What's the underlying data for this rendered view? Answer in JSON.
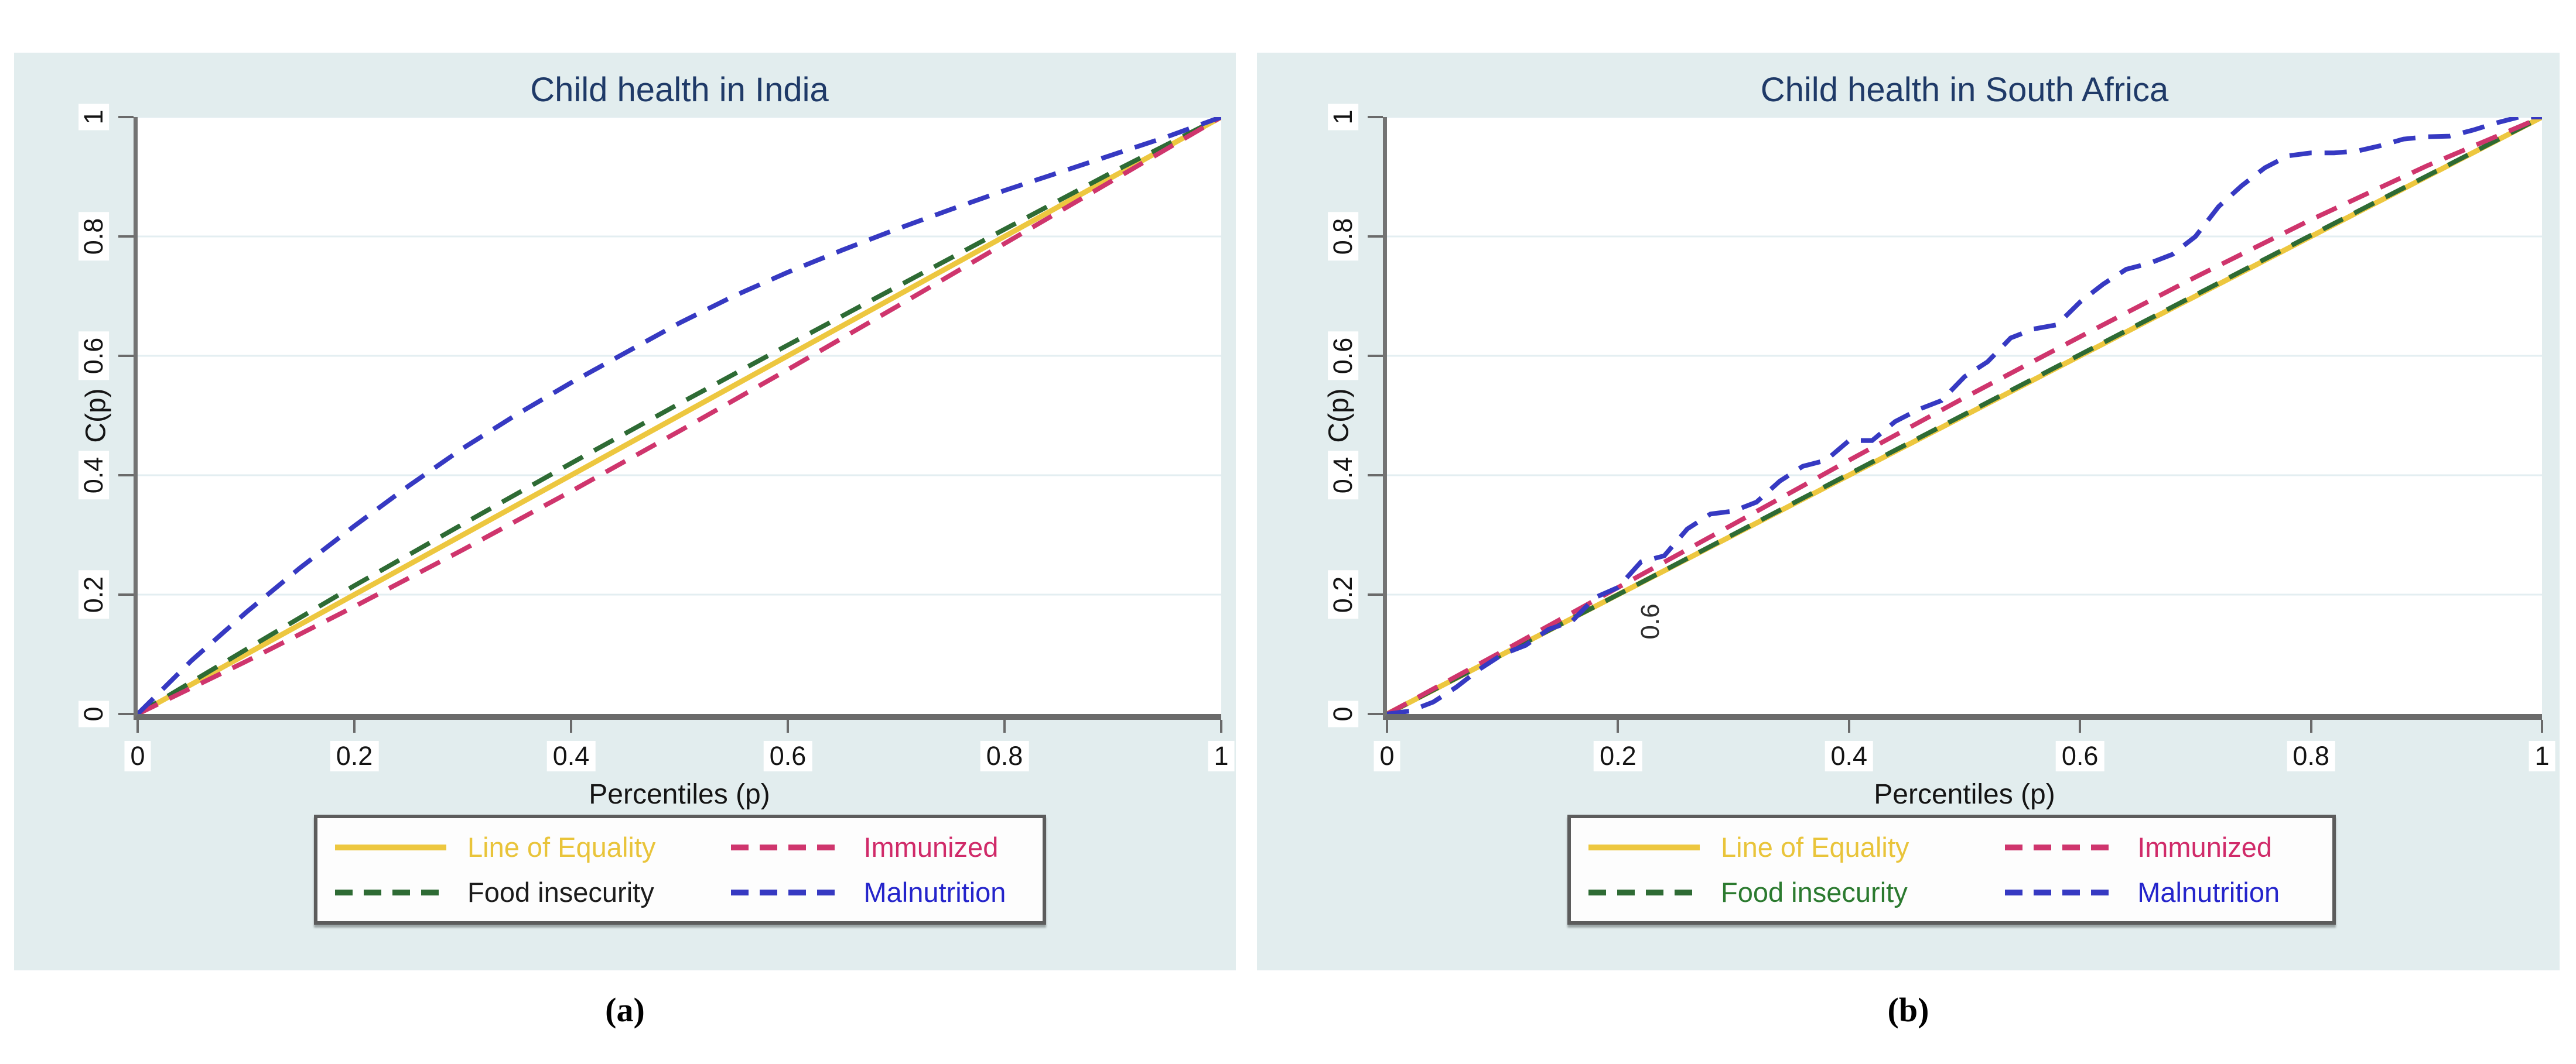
{
  "style": {
    "panel_bg": "#e2edee",
    "plot_bg": "#ffffff",
    "grid_color": "#e3eef1",
    "axis_color": "#6b6b6b",
    "title_color": "#1f3a68",
    "tick_text_color": "#141414"
  },
  "captions": {
    "a": "(a)",
    "b": "(b)"
  },
  "chart_data": [
    {
      "type": "line",
      "title": "Child health in India",
      "xlabel": "Percentiles (p)",
      "ylabel": "C(p)",
      "xlim": [
        0,
        1
      ],
      "ylim": [
        0,
        1
      ],
      "grid": "horizontal",
      "legend_position": "below",
      "xtick_values": [
        0,
        0.2,
        0.4,
        0.6,
        0.8,
        1
      ],
      "xtick_labels": [
        "0",
        "0.2",
        "0.4",
        "0.6",
        "0.8",
        "1"
      ],
      "ytick_values": [
        0,
        0.2,
        0.4,
        0.6,
        0.8,
        1
      ],
      "ytick_labels": [
        "0",
        "0.2",
        "0.4",
        "0.6",
        "0.8",
        "1"
      ],
      "series": [
        {
          "name": "Line of Equality",
          "color": "#edc73f",
          "dash": "solid",
          "points": [
            [
              0,
              0
            ],
            [
              1,
              1
            ]
          ]
        },
        {
          "name": "Food insecurity",
          "color": "#2e6b34",
          "dash": "dashed",
          "points": [
            [
              0,
              0
            ],
            [
              0.1,
              0.108
            ],
            [
              0.2,
              0.215
            ],
            [
              0.3,
              0.318
            ],
            [
              0.4,
              0.42
            ],
            [
              0.5,
              0.52
            ],
            [
              0.6,
              0.618
            ],
            [
              0.7,
              0.715
            ],
            [
              0.8,
              0.812
            ],
            [
              0.9,
              0.908
            ],
            [
              1,
              1
            ]
          ]
        },
        {
          "name": "Immunized",
          "color": "#cf356d",
          "dash": "dashed",
          "points": [
            [
              0,
              0
            ],
            [
              0.1,
              0.088
            ],
            [
              0.2,
              0.18
            ],
            [
              0.3,
              0.275
            ],
            [
              0.4,
              0.373
            ],
            [
              0.5,
              0.474
            ],
            [
              0.6,
              0.577
            ],
            [
              0.7,
              0.682
            ],
            [
              0.8,
              0.788
            ],
            [
              0.9,
              0.894
            ],
            [
              1,
              1
            ]
          ]
        },
        {
          "name": "Malnutrition",
          "color": "#3639c2",
          "dash": "dashed",
          "points": [
            [
              0,
              0
            ],
            [
              0.05,
              0.09
            ],
            [
              0.1,
              0.17
            ],
            [
              0.15,
              0.245
            ],
            [
              0.2,
              0.315
            ],
            [
              0.25,
              0.382
            ],
            [
              0.3,
              0.445
            ],
            [
              0.35,
              0.502
            ],
            [
              0.4,
              0.555
            ],
            [
              0.45,
              0.605
            ],
            [
              0.5,
              0.655
            ],
            [
              0.55,
              0.7
            ],
            [
              0.6,
              0.74
            ],
            [
              0.65,
              0.777
            ],
            [
              0.7,
              0.812
            ],
            [
              0.75,
              0.845
            ],
            [
              0.8,
              0.877
            ],
            [
              0.85,
              0.907
            ],
            [
              0.9,
              0.937
            ],
            [
              0.95,
              0.967
            ],
            [
              1,
              1
            ]
          ]
        }
      ],
      "legend": [
        {
          "label": "Line of Equality",
          "color": "#edc73f",
          "text_color": "#e9c43a",
          "dash": "solid"
        },
        {
          "label": "Immunized",
          "color": "#cf356d",
          "text_color": "#d02a69",
          "dash": "dashed"
        },
        {
          "label": "Food insecurity",
          "color": "#2e6b34",
          "text_color": "#1c1c1c",
          "dash": "dashed"
        },
        {
          "label": "Malnutrition",
          "color": "#3639c2",
          "text_color": "#2424cb",
          "dash": "dashed"
        }
      ],
      "annotations": []
    },
    {
      "type": "line",
      "title": "Child health in South Africa",
      "xlabel": "Percentiles (p)",
      "ylabel": "C(p)",
      "xlim": [
        0,
        1
      ],
      "ylim": [
        0,
        1
      ],
      "grid": "horizontal",
      "legend_position": "below",
      "xtick_values": [
        0,
        0.2,
        0.4,
        0.6,
        0.8,
        1
      ],
      "xtick_labels": [
        "0",
        "0.2",
        "0.4",
        "0.6",
        "0.8",
        "1"
      ],
      "ytick_values": [
        0,
        0.2,
        0.4,
        0.6,
        0.8,
        1
      ],
      "ytick_labels": [
        "0",
        "0.2",
        "0.4",
        "0.6",
        "0.8",
        "1"
      ],
      "series": [
        {
          "name": "Line of Equality",
          "color": "#edc73f",
          "dash": "solid",
          "points": [
            [
              0,
              0
            ],
            [
              1,
              1
            ]
          ]
        },
        {
          "name": "Food insecurity",
          "color": "#2e6b34",
          "dash": "dashed",
          "points": [
            [
              0,
              0
            ],
            [
              0.2,
              0.2
            ],
            [
              0.4,
              0.402
            ],
            [
              0.6,
              0.602
            ],
            [
              0.8,
              0.802
            ],
            [
              1,
              1
            ]
          ]
        },
        {
          "name": "Immunized",
          "color": "#cf356d",
          "dash": "dashed",
          "points": [
            [
              0,
              0
            ],
            [
              0.1,
              0.105
            ],
            [
              0.2,
              0.212
            ],
            [
              0.3,
              0.318
            ],
            [
              0.4,
              0.425
            ],
            [
              0.5,
              0.53
            ],
            [
              0.6,
              0.632
            ],
            [
              0.7,
              0.732
            ],
            [
              0.8,
              0.828
            ],
            [
              0.9,
              0.918
            ],
            [
              1,
              1
            ]
          ]
        },
        {
          "name": "Malnutrition",
          "color": "#3639c2",
          "dash": "dashed",
          "points": [
            [
              0,
              0
            ],
            [
              0.02,
              0.005
            ],
            [
              0.04,
              0.02
            ],
            [
              0.06,
              0.045
            ],
            [
              0.08,
              0.075
            ],
            [
              0.1,
              0.1
            ],
            [
              0.12,
              0.115
            ],
            [
              0.14,
              0.142
            ],
            [
              0.16,
              0.155
            ],
            [
              0.18,
              0.195
            ],
            [
              0.2,
              0.212
            ],
            [
              0.22,
              0.255
            ],
            [
              0.24,
              0.265
            ],
            [
              0.26,
              0.31
            ],
            [
              0.28,
              0.335
            ],
            [
              0.3,
              0.34
            ],
            [
              0.32,
              0.355
            ],
            [
              0.34,
              0.39
            ],
            [
              0.36,
              0.415
            ],
            [
              0.38,
              0.425
            ],
            [
              0.4,
              0.458
            ],
            [
              0.42,
              0.458
            ],
            [
              0.44,
              0.49
            ],
            [
              0.46,
              0.51
            ],
            [
              0.48,
              0.525
            ],
            [
              0.5,
              0.565
            ],
            [
              0.52,
              0.59
            ],
            [
              0.54,
              0.63
            ],
            [
              0.56,
              0.645
            ],
            [
              0.58,
              0.652
            ],
            [
              0.6,
              0.69
            ],
            [
              0.62,
              0.72
            ],
            [
              0.64,
              0.745
            ],
            [
              0.66,
              0.755
            ],
            [
              0.68,
              0.77
            ],
            [
              0.7,
              0.8
            ],
            [
              0.72,
              0.85
            ],
            [
              0.74,
              0.885
            ],
            [
              0.76,
              0.915
            ],
            [
              0.78,
              0.935
            ],
            [
              0.8,
              0.94
            ],
            [
              0.82,
              0.94
            ],
            [
              0.84,
              0.943
            ],
            [
              0.86,
              0.952
            ],
            [
              0.88,
              0.963
            ],
            [
              0.9,
              0.967
            ],
            [
              0.92,
              0.968
            ],
            [
              0.94,
              0.978
            ],
            [
              0.96,
              0.99
            ],
            [
              0.98,
              1
            ],
            [
              1,
              1
            ]
          ]
        }
      ],
      "legend": [
        {
          "label": "Line of Equality",
          "color": "#edc73f",
          "text_color": "#e9c43a",
          "dash": "solid"
        },
        {
          "label": "Immunized",
          "color": "#cf356d",
          "text_color": "#d02a69",
          "dash": "dashed"
        },
        {
          "label": "Food insecurity",
          "color": "#2e6b34",
          "text_color": "#2b7a2f",
          "dash": "dashed"
        },
        {
          "label": "Malnutrition",
          "color": "#3639c2",
          "text_color": "#2424cb",
          "dash": "dashed"
        }
      ],
      "annotations": [
        {
          "text": "0.6",
          "x": 0.228,
          "y": 0.155,
          "rotation": -90
        }
      ]
    }
  ]
}
